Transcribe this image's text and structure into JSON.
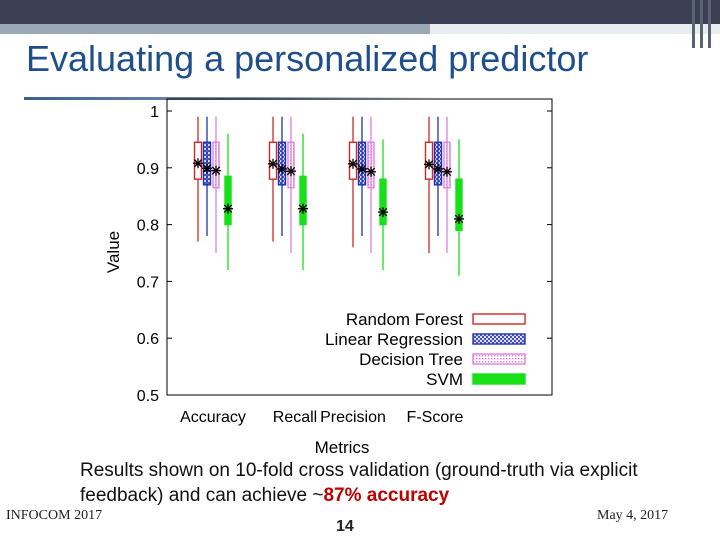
{
  "slide": {
    "title": "Evaluating a personalized predictor",
    "caption_text": "Results shown on 10-fold cross validation (ground-truth via explicit feedback) and can achieve ~",
    "caption_highlight": "87% accuracy",
    "footer_left": "INFOCOM 2017",
    "footer_right": "May 4, 2017",
    "page_number": "14",
    "highlight_color": "#c00000",
    "title_color": "#1f4f8a"
  },
  "chart_data": {
    "type": "box",
    "xlabel": "Metrics",
    "ylabel": "Value",
    "ylim": [
      0.5,
      1.0
    ],
    "yticks": [
      "0.5",
      "0.6",
      "0.7",
      "0.8",
      "0.9",
      "1"
    ],
    "categories": [
      "Accuracy",
      "Recall",
      "Precision",
      "F-Score"
    ],
    "legend_position": "bottom-right",
    "series": [
      {
        "name": "Random Forest",
        "color": "#d02828",
        "fill": "none",
        "boxes": [
          {
            "min": 0.77,
            "q1": 0.88,
            "median": 0.905,
            "mean": 0.908,
            "q3": 0.945,
            "max": 0.99
          },
          {
            "min": 0.77,
            "q1": 0.88,
            "median": 0.905,
            "mean": 0.907,
            "q3": 0.945,
            "max": 0.99
          },
          {
            "min": 0.76,
            "q1": 0.88,
            "median": 0.905,
            "mean": 0.907,
            "q3": 0.945,
            "max": 0.99
          },
          {
            "min": 0.75,
            "q1": 0.88,
            "median": 0.905,
            "mean": 0.906,
            "q3": 0.945,
            "max": 0.99
          }
        ]
      },
      {
        "name": "Linear Regression",
        "color": "#2030b0",
        "fill": "crosshatch",
        "boxes": [
          {
            "min": 0.78,
            "q1": 0.87,
            "median": 0.895,
            "mean": 0.899,
            "q3": 0.945,
            "max": 0.99
          },
          {
            "min": 0.78,
            "q1": 0.87,
            "median": 0.895,
            "mean": 0.898,
            "q3": 0.945,
            "max": 0.99
          },
          {
            "min": 0.78,
            "q1": 0.87,
            "median": 0.895,
            "mean": 0.898,
            "q3": 0.945,
            "max": 0.99
          },
          {
            "min": 0.78,
            "q1": 0.87,
            "median": 0.895,
            "mean": 0.898,
            "q3": 0.945,
            "max": 0.99
          }
        ]
      },
      {
        "name": "Decision Tree",
        "color": "#e080e0",
        "fill": "dotted",
        "boxes": [
          {
            "min": 0.75,
            "q1": 0.865,
            "median": 0.895,
            "mean": 0.895,
            "q3": 0.945,
            "max": 0.99
          },
          {
            "min": 0.75,
            "q1": 0.865,
            "median": 0.895,
            "mean": 0.894,
            "q3": 0.945,
            "max": 0.99
          },
          {
            "min": 0.75,
            "q1": 0.865,
            "median": 0.895,
            "mean": 0.893,
            "q3": 0.945,
            "max": 0.99
          },
          {
            "min": 0.75,
            "q1": 0.865,
            "median": 0.895,
            "mean": 0.893,
            "q3": 0.945,
            "max": 0.99
          }
        ]
      },
      {
        "name": "SVM",
        "color": "#18e018",
        "fill": "solid",
        "boxes": [
          {
            "min": 0.72,
            "q1": 0.8,
            "median": 0.83,
            "mean": 0.828,
            "q3": 0.885,
            "max": 0.96
          },
          {
            "min": 0.72,
            "q1": 0.8,
            "median": 0.83,
            "mean": 0.828,
            "q3": 0.885,
            "max": 0.96
          },
          {
            "min": 0.72,
            "q1": 0.8,
            "median": 0.83,
            "mean": 0.822,
            "q3": 0.88,
            "max": 0.95
          },
          {
            "min": 0.71,
            "q1": 0.79,
            "median": 0.82,
            "mean": 0.81,
            "q3": 0.88,
            "max": 0.95
          }
        ]
      }
    ]
  }
}
